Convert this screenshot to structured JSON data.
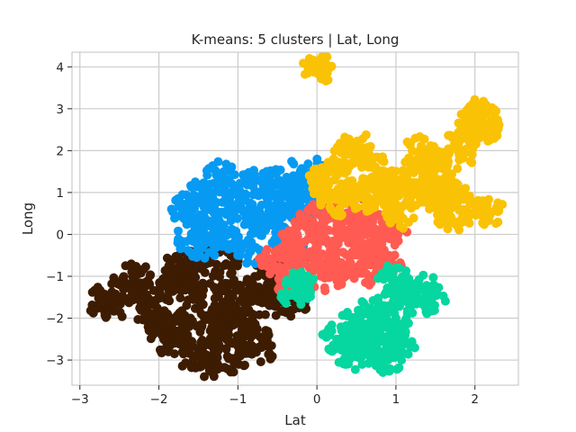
{
  "chart_data": {
    "type": "scatter",
    "title": "K-means: 5 clusters | Lat, Long",
    "xlabel": "Lat",
    "ylabel": "Long",
    "xlim": [
      -3.1,
      2.55
    ],
    "ylim": [
      -3.6,
      4.35
    ],
    "xticks": [
      {
        "value": -3,
        "label": "−3"
      },
      {
        "value": -2,
        "label": "−2"
      },
      {
        "value": -1,
        "label": "−1"
      },
      {
        "value": 0,
        "label": "0"
      },
      {
        "value": 1,
        "label": "1"
      },
      {
        "value": 2,
        "label": "2"
      }
    ],
    "yticks": [
      {
        "value": -3,
        "label": "−3"
      },
      {
        "value": -2,
        "label": "−2"
      },
      {
        "value": -1,
        "label": "−1"
      },
      {
        "value": 0,
        "label": "0"
      },
      {
        "value": 1,
        "label": "1"
      },
      {
        "value": 2,
        "label": "2"
      },
      {
        "value": 3,
        "label": "3"
      },
      {
        "value": 4,
        "label": "4"
      }
    ],
    "grid": true,
    "series": [
      {
        "color": "#3d1c02",
        "points": [
          [
            -2.75,
            -1.6
          ],
          [
            -2.6,
            -1.75
          ],
          [
            -2.45,
            -1.3
          ],
          [
            -2.3,
            -1.0
          ],
          [
            -2.2,
            -1.5
          ],
          [
            -2.1,
            -1.9
          ],
          [
            -2.0,
            -2.2
          ],
          [
            -1.9,
            -2.5
          ],
          [
            -1.85,
            -1.1
          ],
          [
            -1.75,
            -0.8
          ],
          [
            -1.7,
            -2.8
          ],
          [
            -1.6,
            -2.0
          ],
          [
            -1.55,
            -1.5
          ],
          [
            -1.5,
            -0.6
          ],
          [
            -1.45,
            -2.9
          ],
          [
            -1.4,
            -3.1
          ],
          [
            -1.35,
            -2.3
          ],
          [
            -1.3,
            -1.8
          ],
          [
            -1.2,
            -1.2
          ],
          [
            -1.15,
            -0.7
          ],
          [
            -1.1,
            -2.6
          ],
          [
            -1.05,
            -3.0
          ],
          [
            -0.95,
            -2.1
          ],
          [
            -0.9,
            -1.5
          ],
          [
            -0.8,
            -2.4
          ],
          [
            -0.75,
            -1.0
          ],
          [
            -0.7,
            -2.7
          ],
          [
            -0.6,
            -1.7
          ],
          [
            -0.5,
            -1.3
          ],
          [
            -0.4,
            -0.95
          ],
          [
            -0.3,
            -1.6
          ],
          [
            -2.0,
            -1.4
          ],
          [
            -1.8,
            -2.3
          ],
          [
            -1.6,
            -1.0
          ],
          [
            -1.25,
            -2.0
          ],
          [
            -1.0,
            -1.8
          ]
        ]
      },
      {
        "color": "#069af3",
        "points": [
          [
            -1.65,
            0.6
          ],
          [
            -1.6,
            -0.1
          ],
          [
            -1.55,
            0.3
          ],
          [
            -1.5,
            0.9
          ],
          [
            -1.45,
            -0.3
          ],
          [
            -1.35,
            1.2
          ],
          [
            -1.3,
            0.5
          ],
          [
            -1.25,
            0.0
          ],
          [
            -1.2,
            1.4
          ],
          [
            -1.1,
            0.8
          ],
          [
            -1.05,
            -0.2
          ],
          [
            -1.0,
            1.1
          ],
          [
            -0.9,
            0.4
          ],
          [
            -0.85,
            -0.4
          ],
          [
            -0.75,
            1.3
          ],
          [
            -0.7,
            0.7
          ],
          [
            -0.65,
            0.1
          ],
          [
            -0.55,
            1.2
          ],
          [
            -0.5,
            0.4
          ],
          [
            -0.4,
            0.9
          ],
          [
            -0.35,
            -0.2
          ],
          [
            -0.3,
            1.4
          ],
          [
            -0.2,
            0.6
          ],
          [
            -0.15,
            1.2
          ],
          [
            -0.05,
            1.45
          ],
          [
            0.05,
            0.8
          ]
        ]
      },
      {
        "color": "#ff5b52",
        "points": [
          [
            -0.55,
            -0.6
          ],
          [
            -0.45,
            -1.0
          ],
          [
            -0.35,
            -0.3
          ],
          [
            -0.3,
            -1.2
          ],
          [
            -0.25,
            0.0
          ],
          [
            -0.15,
            -0.7
          ],
          [
            -0.05,
            0.3
          ],
          [
            0.0,
            -0.4
          ],
          [
            0.05,
            -1.0
          ],
          [
            0.1,
            0.7
          ],
          [
            0.15,
            0.1
          ],
          [
            0.2,
            -0.6
          ],
          [
            0.3,
            0.4
          ],
          [
            0.35,
            -0.9
          ],
          [
            0.4,
            -0.2
          ],
          [
            0.5,
            0.2
          ],
          [
            0.55,
            -0.7
          ],
          [
            0.6,
            0.5
          ],
          [
            0.7,
            -0.3
          ],
          [
            0.75,
            -0.9
          ],
          [
            0.85,
            0.2
          ],
          [
            0.9,
            -0.6
          ],
          [
            0.95,
            0.1
          ]
        ]
      },
      {
        "color": "#fac205",
        "points": [
          [
            0.0,
            3.98
          ],
          [
            0.05,
            4.0
          ],
          [
            0.05,
            1.3
          ],
          [
            0.15,
            1.0
          ],
          [
            0.25,
            1.5
          ],
          [
            0.3,
            0.8
          ],
          [
            0.35,
            1.9
          ],
          [
            0.45,
            1.2
          ],
          [
            0.5,
            2.1
          ],
          [
            0.6,
            0.9
          ],
          [
            0.7,
            1.6
          ],
          [
            0.75,
            1.1
          ],
          [
            0.85,
            0.7
          ],
          [
            0.9,
            1.3
          ],
          [
            1.0,
            0.9
          ],
          [
            1.05,
            0.5
          ],
          [
            1.15,
            1.0
          ],
          [
            1.25,
            1.6
          ],
          [
            1.3,
            2.0
          ],
          [
            1.4,
            1.8
          ],
          [
            1.5,
            0.8
          ],
          [
            1.55,
            1.3
          ],
          [
            1.6,
            1.7
          ],
          [
            1.65,
            0.9
          ],
          [
            1.7,
            0.4
          ],
          [
            1.75,
            1.2
          ],
          [
            1.8,
            1.9
          ],
          [
            1.85,
            2.3
          ],
          [
            1.9,
            0.6
          ],
          [
            1.95,
            2.6
          ],
          [
            2.0,
            2.9
          ],
          [
            2.05,
            2.5
          ],
          [
            2.1,
            2.8
          ],
          [
            2.15,
            2.6
          ],
          [
            2.2,
            0.5
          ],
          [
            1.4,
            1.1
          ]
        ]
      },
      {
        "color": "#06d6a0",
        "points": [
          [
            -0.3,
            -1.4
          ],
          [
            -0.2,
            -1.2
          ],
          [
            0.25,
            -2.5
          ],
          [
            0.35,
            -2.8
          ],
          [
            0.45,
            -2.2
          ],
          [
            0.5,
            -2.9
          ],
          [
            0.6,
            -2.5
          ],
          [
            0.65,
            -1.9
          ],
          [
            0.7,
            -2.8
          ],
          [
            0.8,
            -2.3
          ],
          [
            0.85,
            -1.7
          ],
          [
            0.9,
            -3.0
          ],
          [
            0.95,
            -2.6
          ],
          [
            0.95,
            -1.1
          ],
          [
            1.0,
            -2.0
          ],
          [
            1.05,
            -1.4
          ],
          [
            1.1,
            -2.6
          ],
          [
            1.15,
            -1.2
          ],
          [
            1.25,
            -1.6
          ],
          [
            1.35,
            -1.3
          ],
          [
            1.45,
            -1.55
          ]
        ]
      }
    ]
  }
}
